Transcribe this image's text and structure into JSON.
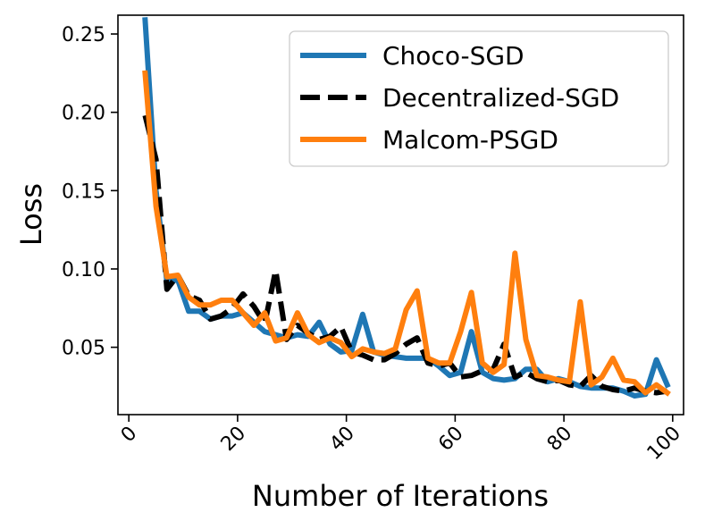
{
  "chart_data": {
    "type": "line",
    "xlabel": "Number of Iterations",
    "ylabel": "Loss",
    "xlim": [
      -2,
      102
    ],
    "ylim": [
      0.007,
      0.262
    ],
    "xticks": [
      0,
      20,
      40,
      60,
      80,
      100
    ],
    "xtick_labels": [
      "0",
      "20",
      "40",
      "60",
      "80",
      "100"
    ],
    "yticks": [
      0.05,
      0.1,
      0.15,
      0.2,
      0.25
    ],
    "ytick_labels": [
      "0.05",
      "0.10",
      "0.15",
      "0.20",
      "0.25"
    ],
    "grid": false,
    "legend_position": "top-right",
    "x": [
      3,
      5,
      7,
      9,
      11,
      13,
      15,
      17,
      19,
      21,
      23,
      25,
      27,
      29,
      31,
      33,
      35,
      37,
      39,
      41,
      43,
      45,
      47,
      49,
      51,
      53,
      55,
      57,
      59,
      61,
      63,
      65,
      67,
      69,
      71,
      73,
      75,
      77,
      79,
      81,
      83,
      85,
      87,
      89,
      91,
      93,
      95,
      97,
      99
    ],
    "series": [
      {
        "name": "Choco-SGD",
        "color": "#1f77b4",
        "style": "solid",
        "values": [
          0.259,
          0.15,
          0.092,
          0.093,
          0.073,
          0.073,
          0.068,
          0.07,
          0.07,
          0.072,
          0.066,
          0.06,
          0.058,
          0.056,
          0.058,
          0.057,
          0.066,
          0.052,
          0.047,
          0.048,
          0.071,
          0.047,
          0.045,
          0.044,
          0.043,
          0.043,
          0.043,
          0.038,
          0.032,
          0.034,
          0.06,
          0.034,
          0.03,
          0.029,
          0.03,
          0.036,
          0.036,
          0.028,
          0.03,
          0.028,
          0.025,
          0.024,
          0.024,
          0.024,
          0.022,
          0.019,
          0.02,
          0.042,
          0.026
        ]
      },
      {
        "name": "Decentralized-SGD",
        "color": "#000000",
        "style": "dashed",
        "values": [
          0.198,
          0.17,
          0.087,
          0.096,
          0.083,
          0.08,
          0.068,
          0.07,
          0.075,
          0.084,
          0.076,
          0.065,
          0.099,
          0.055,
          0.064,
          0.059,
          0.055,
          0.057,
          0.063,
          0.047,
          0.045,
          0.042,
          0.042,
          0.046,
          0.052,
          0.056,
          0.04,
          0.038,
          0.04,
          0.031,
          0.032,
          0.035,
          0.036,
          0.052,
          0.031,
          0.034,
          0.03,
          0.028,
          0.029,
          0.026,
          0.025,
          0.032,
          0.025,
          0.023,
          0.022,
          0.024,
          0.022,
          0.021,
          0.022
        ]
      },
      {
        "name": "Malcom-PSGD",
        "color": "#ff7f0e",
        "style": "solid",
        "values": [
          0.225,
          0.14,
          0.095,
          0.096,
          0.082,
          0.077,
          0.077,
          0.08,
          0.08,
          0.072,
          0.064,
          0.072,
          0.054,
          0.056,
          0.072,
          0.058,
          0.053,
          0.056,
          0.053,
          0.044,
          0.049,
          0.047,
          0.046,
          0.049,
          0.074,
          0.086,
          0.043,
          0.04,
          0.04,
          0.06,
          0.085,
          0.04,
          0.034,
          0.039,
          0.11,
          0.055,
          0.032,
          0.031,
          0.029,
          0.028,
          0.079,
          0.026,
          0.031,
          0.043,
          0.029,
          0.028,
          0.021,
          0.026,
          0.021
        ]
      }
    ]
  }
}
